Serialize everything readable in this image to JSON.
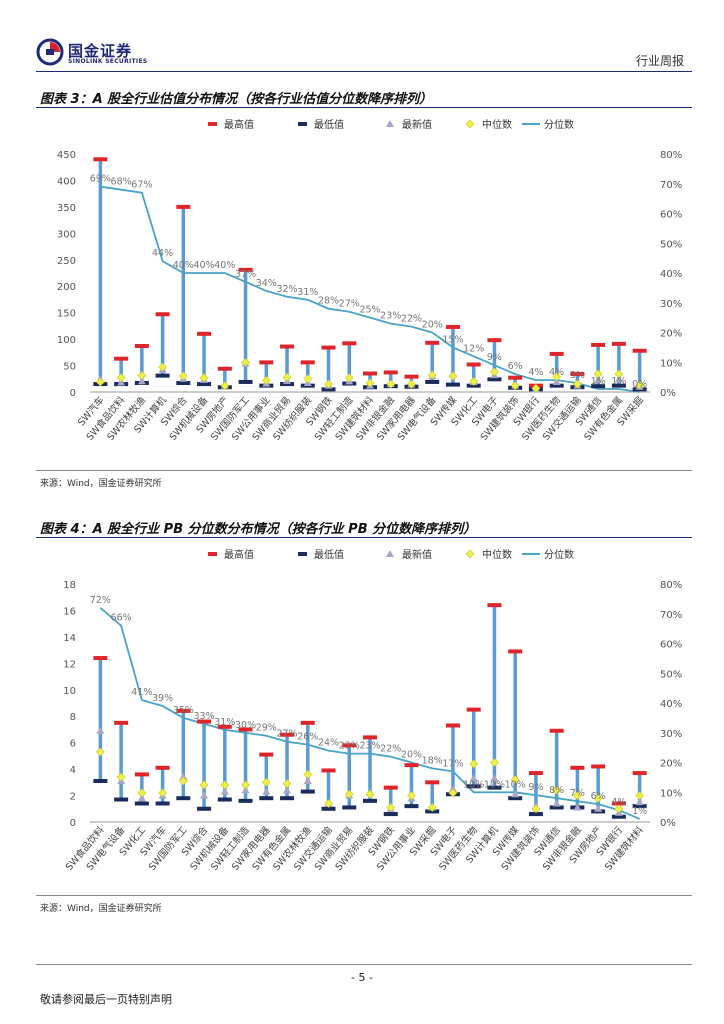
{
  "header": {
    "company_cn": "国金证券",
    "company_en": "SINOLINK SECURITIES",
    "report_type": "行业周报"
  },
  "legend": {
    "max": "最高值",
    "min": "最低值",
    "latest": "最新值",
    "median": "中位数",
    "percentile": "分位数"
  },
  "figures": [
    {
      "title": "图表 3：A 股全行业估值分布情况（按各行业估值分位数降序排列）",
      "source": "来源：Wind，国金证券研究所"
    },
    {
      "title": "图表 4：A 股全行业 PB 分位数分布情况（按各行业 PB 分位数降序排列）",
      "source": "来源：Wind，国金证券研究所"
    }
  ],
  "chart_data": [
    {
      "type": "line",
      "title": "A 股全行业估值分布情况",
      "ylim_left": [
        0,
        450
      ],
      "yticks_left": [
        "0",
        "50",
        "100",
        "150",
        "200",
        "250",
        "300",
        "350",
        "400",
        "450"
      ],
      "ylim_right": [
        0,
        80
      ],
      "yticks_right": [
        "0%",
        "10%",
        "20%",
        "30%",
        "40%",
        "50%",
        "60%",
        "70%",
        "80%"
      ],
      "categories": [
        "SW汽车",
        "SW食品饮料",
        "SW农林牧渔",
        "SW计算机",
        "SW综合",
        "SW机械设备",
        "SW房地产",
        "SW国防军工",
        "SW公用事业",
        "SW商业贸易",
        "SW纺织服装",
        "SW钢铁",
        "SW轻工制造",
        "SW建筑材料",
        "SW非银金融",
        "SW家用电器",
        "SW电气设备",
        "SW传媒",
        "SW化工",
        "SW电子",
        "SW建筑装饰",
        "SW银行",
        "SW医药生物",
        "SW交通运输",
        "SW通信",
        "SW有色金属",
        "SW采掘"
      ],
      "series": [
        {
          "name": "最高值",
          "values": [
            440,
            63,
            87,
            147,
            350,
            110,
            44,
            231,
            56,
            86,
            56,
            84,
            92,
            35,
            37,
            29,
            93,
            123,
            52,
            98,
            27,
            12,
            72,
            34,
            89,
            91,
            78
          ]
        },
        {
          "name": "最低值",
          "values": [
            15,
            15,
            17,
            31,
            17,
            15,
            9,
            19,
            12,
            15,
            12,
            5,
            16,
            9,
            11,
            10,
            19,
            14,
            12,
            24,
            8,
            5,
            12,
            9,
            11,
            12,
            5
          ]
        },
        {
          "name": "最新值",
          "values": [
            24,
            18,
            20,
            42,
            25,
            23,
            12,
            54,
            16,
            21,
            17,
            12,
            20,
            12,
            15,
            14,
            30,
            33,
            19,
            32,
            12,
            6,
            19,
            12,
            23,
            24,
            10
          ]
        },
        {
          "name": "中位数",
          "values": [
            19,
            27,
            31,
            47,
            30,
            27,
            12,
            56,
            22,
            28,
            25,
            15,
            27,
            17,
            15,
            15,
            32,
            30,
            20,
            38,
            12,
            7,
            29,
            15,
            34,
            34,
            13
          ]
        },
        {
          "name": "分位数",
          "values": [
            69,
            68,
            67,
            44,
            40,
            40,
            40,
            37,
            34,
            32,
            31,
            28,
            27,
            25,
            23,
            22,
            20,
            15,
            12,
            9,
            6,
            4,
            4,
            3,
            1,
            1,
            0
          ]
        }
      ],
      "percent_labels": [
        "69%",
        "68%",
        "67%",
        "44%",
        "40%",
        "40%",
        "40%",
        "37%",
        "34%",
        "32%",
        "31%",
        "28%",
        "27%",
        "25%",
        "23%",
        "22%",
        "20%",
        "15%",
        "12%",
        "9%",
        "6%",
        "4%",
        "4%",
        "3%",
        "1%",
        "1%",
        "0%"
      ]
    },
    {
      "type": "line",
      "title": "A 股全行业 PB 分位数分布情况",
      "ylim_left": [
        0,
        18
      ],
      "yticks_left": [
        "0",
        "2",
        "4",
        "6",
        "8",
        "10",
        "12",
        "14",
        "16",
        "18"
      ],
      "ylim_right": [
        0,
        80
      ],
      "yticks_right": [
        "0%",
        "10%",
        "20%",
        "30%",
        "40%",
        "50%",
        "60%",
        "70%",
        "80%"
      ],
      "categories": [
        "SW食品饮料",
        "SW电气设备",
        "SW化工",
        "SW汽车",
        "SW国防军工",
        "SW综合",
        "SW机械设备",
        "SW轻工制造",
        "SW家用电器",
        "SW有色金属",
        "SW农林牧渔",
        "SW交通运输",
        "SW商业贸易",
        "SW纺织服装",
        "SW钢铁",
        "SW公用事业",
        "SW采掘",
        "SW电子",
        "SW医药生物",
        "SW计算机",
        "SW传媒",
        "SW建筑装饰",
        "SW通信",
        "SW非银金融",
        "SW房地产",
        "SW银行",
        "SW建筑材料"
      ],
      "series": [
        {
          "name": "最高值",
          "values": [
            12.4,
            7.5,
            3.6,
            4.1,
            8.4,
            7.6,
            7.2,
            7.0,
            5.1,
            6.6,
            7.5,
            3.9,
            5.8,
            6.4,
            2.6,
            4.3,
            3.0,
            7.3,
            8.5,
            16.4,
            12.9,
            3.7,
            6.9,
            4.1,
            4.2,
            1.4,
            3.7
          ]
        },
        {
          "name": "最低值",
          "values": [
            3.1,
            1.7,
            1.4,
            1.4,
            1.8,
            1.0,
            1.7,
            1.6,
            1.8,
            1.8,
            2.3,
            1.0,
            1.1,
            1.6,
            0.6,
            1.2,
            0.8,
            2.1,
            2.7,
            2.6,
            1.8,
            0.6,
            1.1,
            1.1,
            0.8,
            0.4,
            1.2
          ]
        },
        {
          "name": "最新值",
          "values": [
            6.9,
            3.1,
            1.8,
            2.0,
            3.4,
            2.0,
            2.3,
            2.4,
            2.3,
            2.4,
            3.1,
            1.4,
            2.0,
            2.2,
            1.0,
            1.8,
            1.1,
            2.5,
            3.3,
            3.3,
            2.1,
            1.2,
            1.4,
            1.1,
            1.0,
            0.7,
            1.5
          ]
        },
        {
          "name": "中位数",
          "values": [
            5.3,
            3.4,
            2.2,
            2.2,
            3.1,
            2.8,
            2.8,
            2.8,
            3.0,
            2.9,
            3.6,
            1.4,
            2.1,
            2.1,
            1.1,
            2.0,
            1.1,
            2.2,
            4.4,
            4.5,
            3.2,
            1.0,
            2.4,
            2.0,
            1.8,
            1.0,
            2.0
          ]
        },
        {
          "name": "分位数",
          "values": [
            72,
            66,
            41,
            39,
            35,
            33,
            31,
            30,
            29,
            27,
            26,
            24,
            23,
            23,
            22,
            20,
            18,
            17,
            10,
            10,
            10,
            9,
            8,
            7,
            6,
            4,
            1
          ]
        }
      ],
      "percent_labels": [
        "72%",
        "66%",
        "41%",
        "39%",
        "35%",
        "33%",
        "31%",
        "30%",
        "29%",
        "27%",
        "26%",
        "24%",
        "23%",
        "23%",
        "22%",
        "20%",
        "18%",
        "17%",
        "10%",
        "10%",
        "10%",
        "9%",
        "8%",
        "7%",
        "6%",
        "4%",
        "1%"
      ]
    }
  ],
  "page": {
    "number": "- 5 -",
    "disclaimer": "敬请参阅最后一页特别声明"
  }
}
